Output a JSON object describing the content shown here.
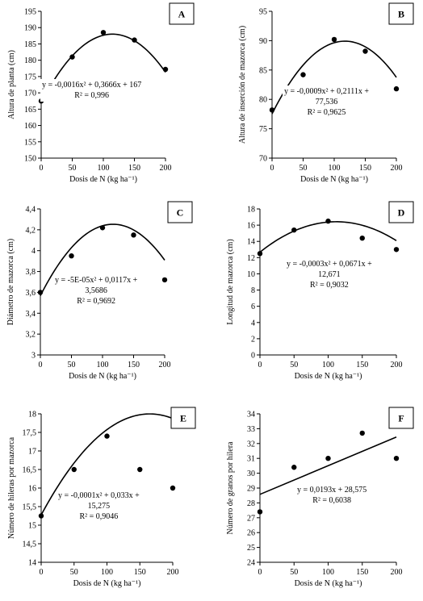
{
  "chart_data": [
    {
      "type": "scatter",
      "letter": "A",
      "xlabel": "Dosis de N (kg ha⁻¹)",
      "ylabel": "Altura de planta (cm)",
      "xlim": [
        0,
        200
      ],
      "ylim": [
        150,
        195
      ],
      "xticks": [
        "0",
        "50",
        "100",
        "150",
        "200"
      ],
      "yticks": [
        "150",
        "155",
        "160",
        "165",
        "170",
        "175",
        "180",
        "185",
        "190",
        "195"
      ],
      "x": [
        0,
        50,
        100,
        150,
        200
      ],
      "y": [
        167.5,
        181,
        188.5,
        186.2,
        177.2
      ],
      "fit": {
        "type": "poly2",
        "a": -0.0016,
        "b": 0.3666,
        "c": 167
      },
      "equation_lines": [
        "y = -0,0016x² + 0,3666x + 167",
        "R² = 0,996"
      ]
    },
    {
      "type": "scatter",
      "letter": "B",
      "xlabel": "Dosis de N (kg ha⁻¹)",
      "ylabel": "Altura de inserción de mazorca (cm)",
      "xlim": [
        0,
        200
      ],
      "ylim": [
        70,
        95
      ],
      "xticks": [
        "0",
        "50",
        "100",
        "150",
        "200"
      ],
      "yticks": [
        "70",
        "75",
        "80",
        "85",
        "90",
        "95"
      ],
      "x": [
        0,
        50,
        100,
        150,
        200
      ],
      "y": [
        78.2,
        84.2,
        90.2,
        88.2,
        81.8
      ],
      "fit": {
        "type": "poly2",
        "a": -0.0009,
        "b": 0.2111,
        "c": 77.536
      },
      "equation_lines": [
        "y = -0,0009x² + 0,2111x +",
        "77,536",
        "R² = 0,9625"
      ]
    },
    {
      "type": "scatter",
      "letter": "C",
      "xlabel": "Dosis de N (kg ha⁻¹)",
      "ylabel": "Diámetro de mazorca (cm)",
      "xlim": [
        0,
        200
      ],
      "ylim": [
        3,
        4.4
      ],
      "xticks": [
        "0",
        "50",
        "100",
        "150",
        "200"
      ],
      "yticks": [
        "3",
        "3,2",
        "3,4",
        "3,6",
        "3,8",
        "4",
        "4,2",
        "4,4"
      ],
      "x": [
        0,
        50,
        100,
        150,
        200
      ],
      "y": [
        3.6,
        3.95,
        4.22,
        4.15,
        3.72
      ],
      "fit": {
        "type": "poly2",
        "a": -5e-05,
        "b": 0.0117,
        "c": 3.5686
      },
      "equation_lines": [
        "y = -5E-05x² + 0,0117x +",
        "3,5686",
        "R² = 0,9692"
      ]
    },
    {
      "type": "scatter",
      "letter": "D",
      "xlabel": "Dosis de N (kg ha⁻¹)",
      "ylabel": "Longitud de mazorca (cm)",
      "xlim": [
        0,
        200
      ],
      "ylim": [
        0,
        18
      ],
      "xticks": [
        "0",
        "50",
        "100",
        "150",
        "200"
      ],
      "yticks": [
        "0",
        "2",
        "4",
        "6",
        "8",
        "10",
        "12",
        "14",
        "16",
        "18"
      ],
      "x": [
        0,
        50,
        100,
        150,
        200
      ],
      "y": [
        12.5,
        15.4,
        16.5,
        14.4,
        13
      ],
      "fit": {
        "type": "poly2",
        "a": -0.0003,
        "b": 0.0671,
        "c": 12.671
      },
      "equation_lines": [
        "y = -0,0003x² + 0,0671x +",
        "12,671",
        "R² = 0,9032"
      ]
    },
    {
      "type": "scatter",
      "letter": "E",
      "xlabel": "Dosis de N (kg ha⁻¹)",
      "ylabel": "Número de hileras por mazorca",
      "xlim": [
        0,
        200
      ],
      "ylim": [
        14,
        18
      ],
      "xticks": [
        "0",
        "50",
        "100",
        "150",
        "200"
      ],
      "yticks": [
        "14",
        "14,5",
        "15",
        "15,5",
        "16",
        "16,5",
        "17",
        "17,5",
        "18"
      ],
      "x": [
        0,
        50,
        100,
        150,
        200
      ],
      "y": [
        15.25,
        16.5,
        17.4,
        16.5,
        16
      ],
      "fit": {
        "type": "poly2",
        "a": -0.0001,
        "b": 0.033,
        "c": 15.275
      },
      "equation_lines": [
        "y = -0,0001x² + 0,033x +",
        "15,275",
        "R² = 0,9046"
      ]
    },
    {
      "type": "scatter",
      "letter": "F",
      "xlabel": "Dosis de N (kg ha⁻¹)",
      "ylabel": "Número de granos por hilera",
      "xlim": [
        0,
        200
      ],
      "ylim": [
        24,
        34
      ],
      "xticks": [
        "0",
        "50",
        "100",
        "150",
        "200"
      ],
      "yticks": [
        "24",
        "25",
        "26",
        "27",
        "28",
        "29",
        "30",
        "31",
        "32",
        "33",
        "34"
      ],
      "x": [
        0,
        50,
        100,
        150,
        200
      ],
      "y": [
        27.4,
        30.4,
        31,
        32.7,
        31
      ],
      "fit": {
        "type": "linear",
        "m": 0.0193,
        "b": 28.575
      },
      "equation_lines": [
        "y = 0,0193x + 28,575",
        "R² = 0,6038"
      ]
    }
  ]
}
